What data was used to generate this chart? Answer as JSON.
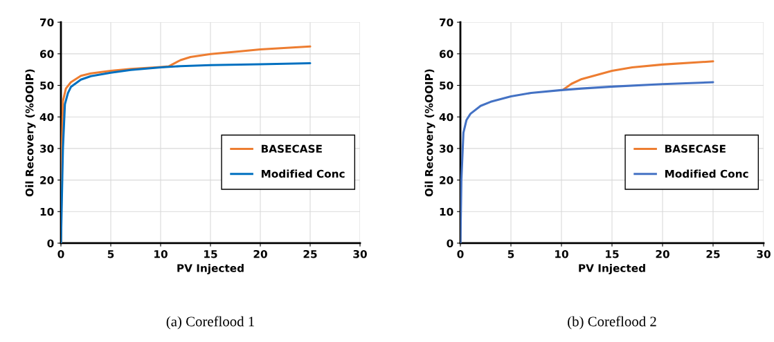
{
  "chart_data": [
    {
      "type": "line",
      "xlabel": "PV Injected",
      "ylabel": "Oil Recovery (%OOIP)",
      "xlim": [
        0,
        30
      ],
      "ylim": [
        0,
        70
      ],
      "xticks": [
        0,
        5,
        10,
        15,
        20,
        25,
        30
      ],
      "yticks": [
        0,
        10,
        20,
        30,
        40,
        50,
        60,
        70
      ],
      "grid": true,
      "legend": "lower right",
      "marker": "none",
      "line_style": "solid",
      "annotations": [
        "(a) Coreflood 1"
      ],
      "series": [
        {
          "name": "BASECASE",
          "color": "#ed7d31",
          "x": [
            0,
            0.1,
            0.2,
            0.5,
            1,
            2,
            3,
            5,
            7,
            10,
            10.8,
            12,
            13,
            15,
            18,
            20,
            25
          ],
          "values": [
            0,
            30,
            45,
            49,
            51,
            53,
            53.8,
            54.6,
            55.2,
            55.8,
            56,
            58,
            59,
            59.9,
            60.8,
            61.4,
            62.3
          ]
        },
        {
          "name": "Modified Conc",
          "color": "#0070c0",
          "x": [
            0,
            0.2,
            0.4,
            0.7,
            1,
            2,
            3,
            5,
            7,
            10,
            12,
            15,
            20,
            25
          ],
          "values": [
            0,
            30,
            44,
            47.5,
            49.5,
            51.8,
            52.9,
            54,
            54.9,
            55.7,
            56.1,
            56.4,
            56.7,
            57
          ]
        }
      ]
    },
    {
      "type": "line",
      "xlabel": "PV Injected",
      "ylabel": "Oil Recovery (%OOIP)",
      "xlim": [
        0,
        30
      ],
      "ylim": [
        0,
        70
      ],
      "xticks": [
        0,
        5,
        10,
        15,
        20,
        25,
        30
      ],
      "yticks": [
        0,
        10,
        20,
        30,
        40,
        50,
        60,
        70
      ],
      "grid": true,
      "legend": "lower right",
      "marker": "none",
      "line_style": "solid",
      "annotations": [
        "(b) Coreflood 2"
      ],
      "series": [
        {
          "name": "BASECASE",
          "color": "#ed7d31",
          "x": [
            10.2,
            11,
            12,
            15,
            17,
            20,
            25
          ],
          "values": [
            48.7,
            50.5,
            52,
            54.6,
            55.7,
            56.6,
            57.6
          ]
        },
        {
          "name": "Modified Conc",
          "color": "#4472c4",
          "x": [
            0,
            0.1,
            0.3,
            0.6,
            1,
            2,
            3,
            5,
            7,
            10,
            12,
            15,
            20,
            25
          ],
          "values": [
            0,
            20,
            35,
            39,
            41,
            43.5,
            44.8,
            46.5,
            47.6,
            48.5,
            49,
            49.6,
            50.4,
            51
          ]
        }
      ]
    }
  ]
}
